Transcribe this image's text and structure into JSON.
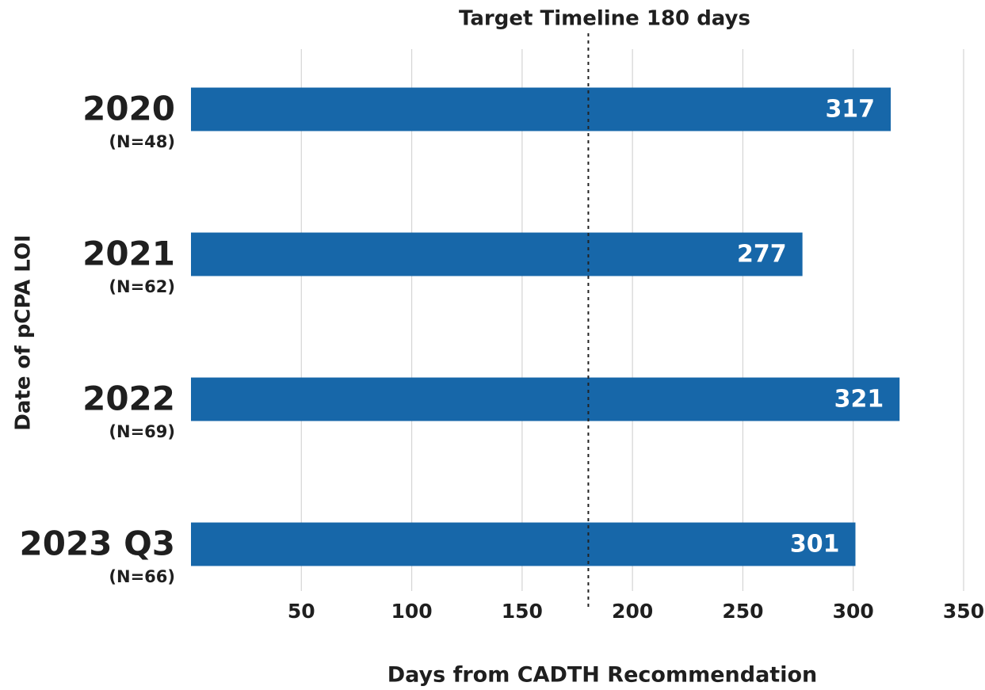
{
  "chart_data": {
    "type": "barh",
    "title": "Target Timeline 180 days",
    "target_line": 180,
    "x_label": "Days from CADTH Recommendation",
    "y_label": "Date of pCPA LOI",
    "categories": [
      "2020",
      "2021",
      "2022",
      "2023 Q3"
    ],
    "category_sublabels": [
      "(N=48)",
      "(N=62)",
      "(N=69)",
      "(N=66)"
    ],
    "values": [
      317,
      277,
      321,
      301
    ],
    "color": "#1767a9",
    "xlim": [
      0,
      350
    ],
    "xticks": [
      50,
      100,
      150,
      200,
      250,
      300,
      350
    ],
    "grid": true
  }
}
